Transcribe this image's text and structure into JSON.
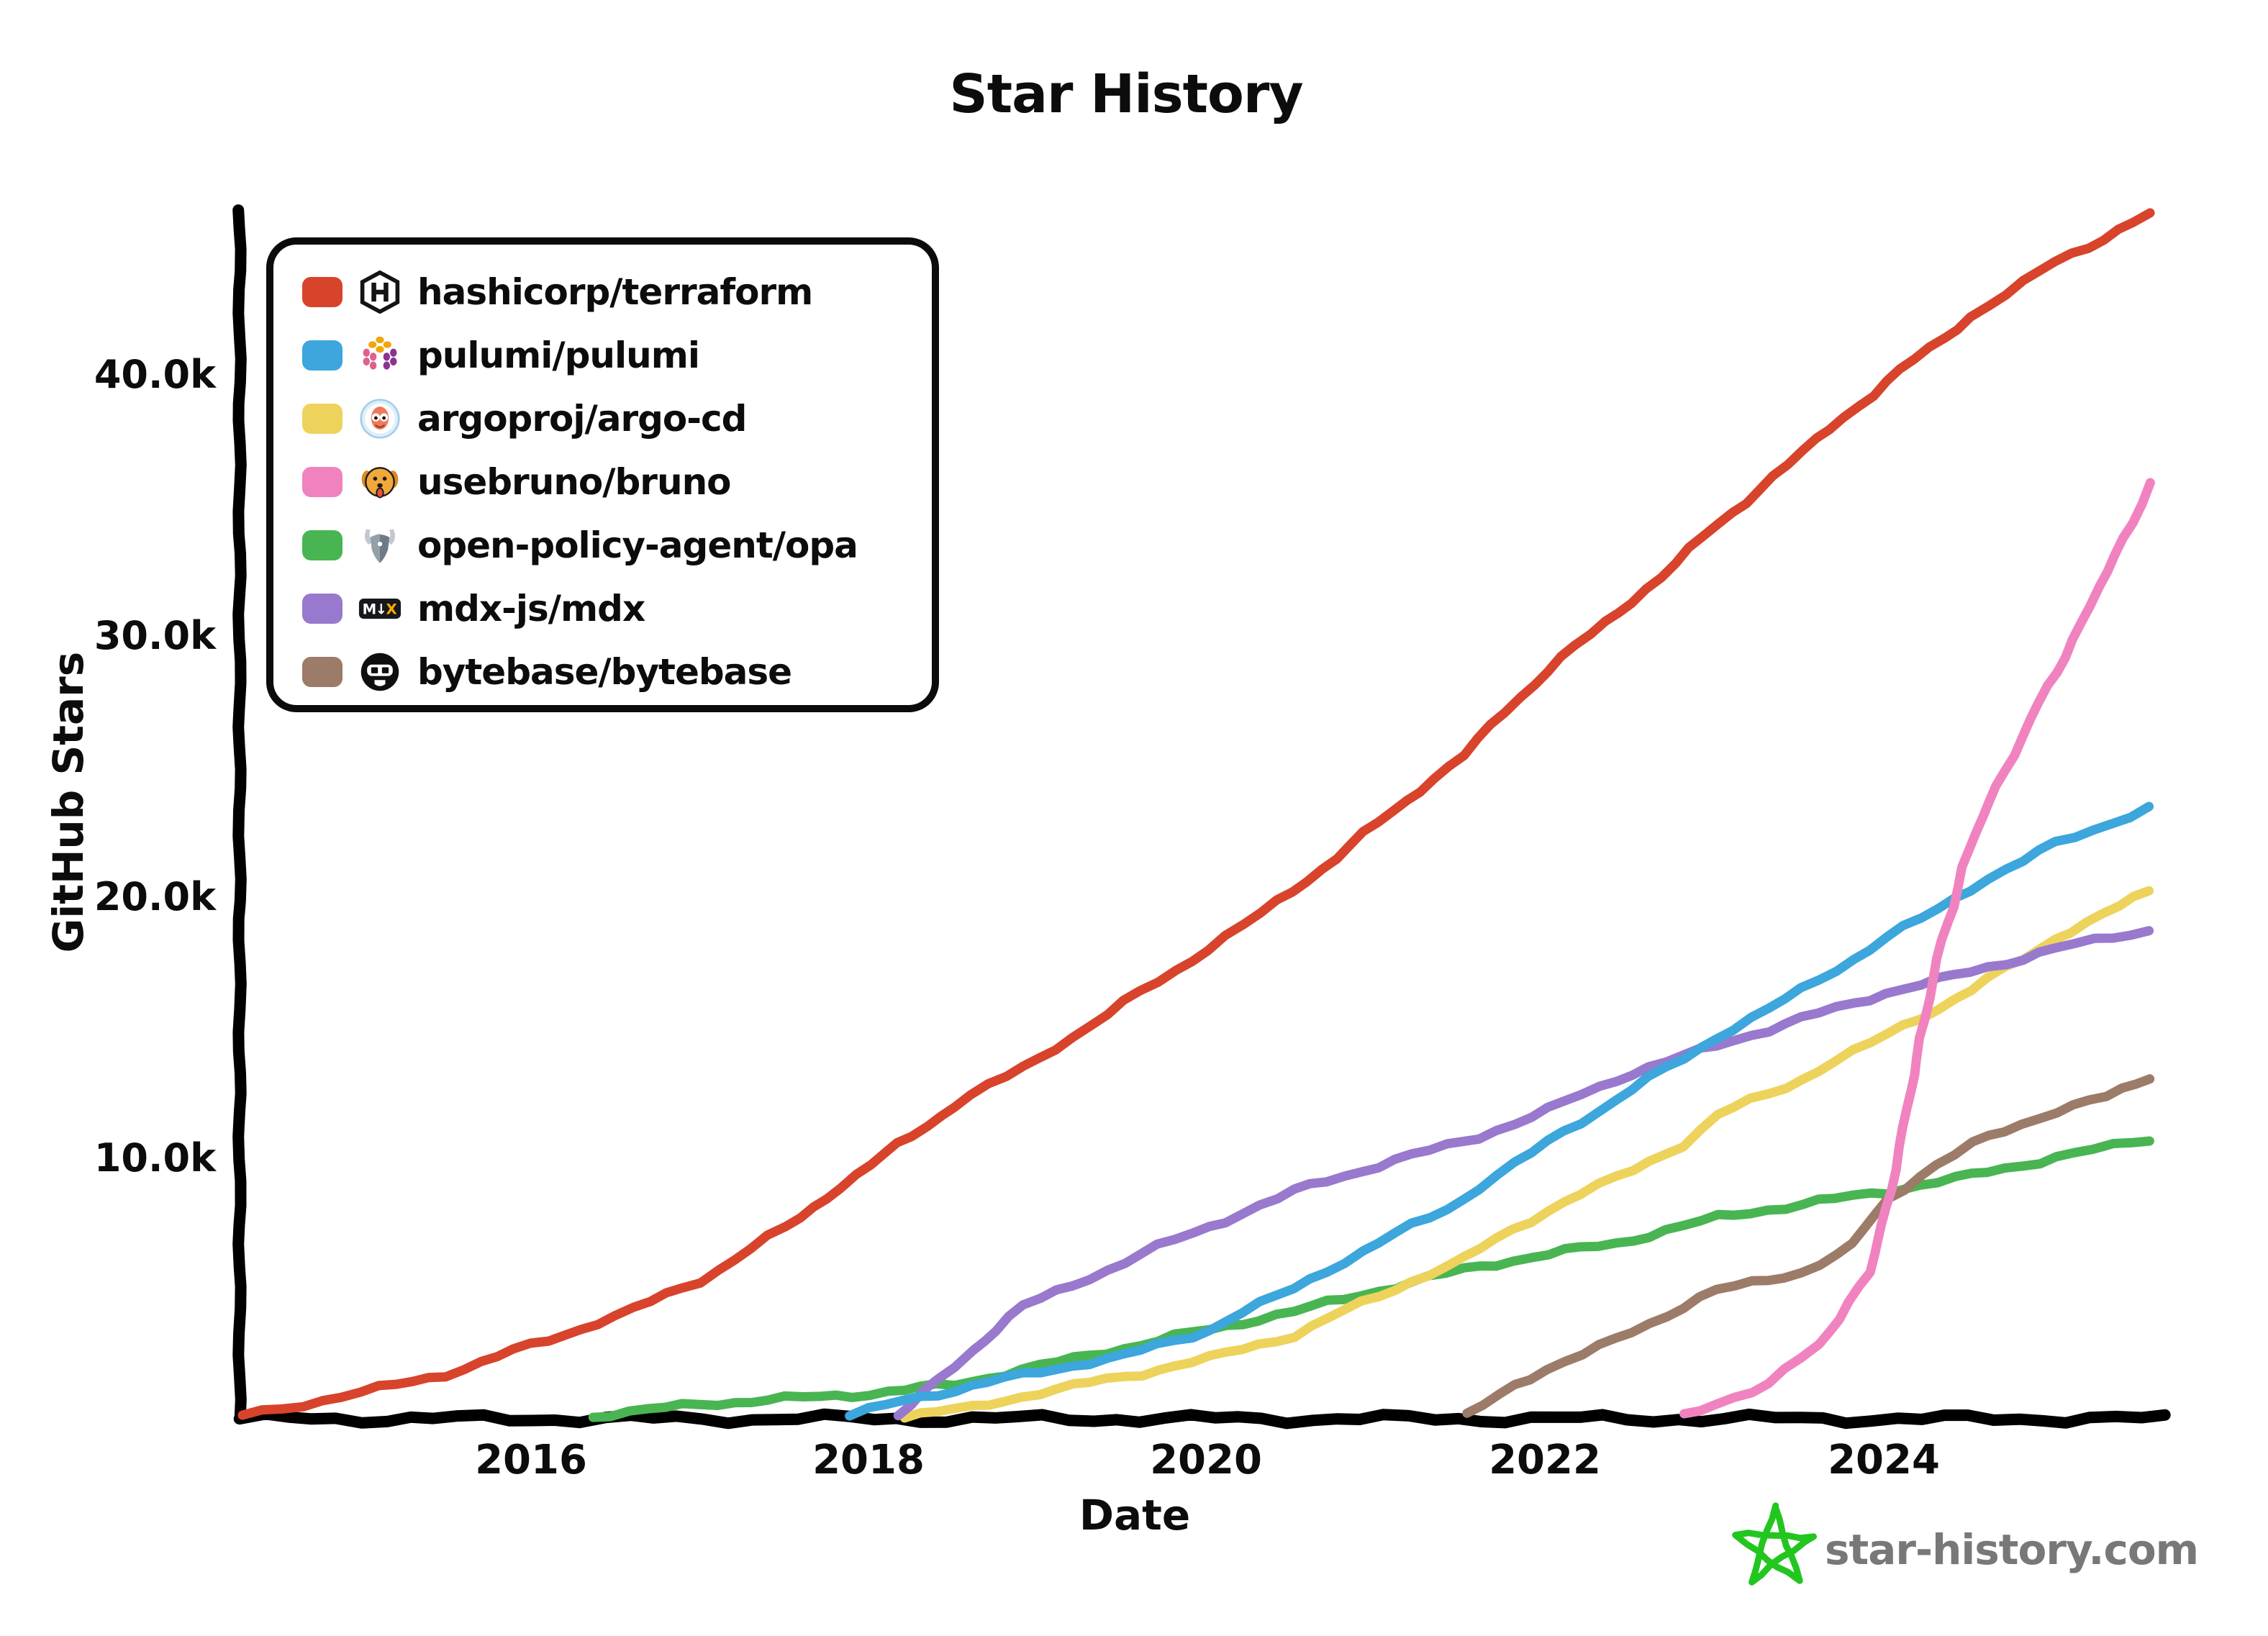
{
  "title": "Star History",
  "axes": {
    "y_label": "GitHub Stars",
    "x_label": "Date",
    "y_ticks": [
      {
        "label": "40.0k",
        "value": 40000
      },
      {
        "label": "30.0k",
        "value": 30000
      },
      {
        "label": "20.0k",
        "value": 20000
      },
      {
        "label": "10.0k",
        "value": 10000
      }
    ],
    "x_ticks": [
      {
        "label": "2016",
        "year": 2016
      },
      {
        "label": "2018",
        "year": 2018
      },
      {
        "label": "2020",
        "year": 2020
      },
      {
        "label": "2022",
        "year": 2022
      },
      {
        "label": "2024",
        "year": 2024
      }
    ]
  },
  "legend": {
    "items": [
      {
        "label": "hashicorp/terraform",
        "icon": "hashicorp-icon",
        "color": "#D8432C"
      },
      {
        "label": "pulumi/pulumi",
        "icon": "pulumi-icon",
        "color": "#3CA6DD"
      },
      {
        "label": "argoproj/argo-cd",
        "icon": "argo-icon",
        "color": "#EDD35C"
      },
      {
        "label": "usebruno/bruno",
        "icon": "bruno-icon",
        "color": "#F083BF"
      },
      {
        "label": "open-policy-agent/opa",
        "icon": "opa-icon",
        "color": "#49B552"
      },
      {
        "label": "mdx-js/mdx",
        "icon": "mdx-icon",
        "color": "#9879CE"
      },
      {
        "label": "bytebase/bytebase",
        "icon": "bytebase-icon",
        "color": "#9C7B68"
      }
    ]
  },
  "watermark": {
    "text": "star-history.com",
    "star_color": "#22C61F",
    "text_color": "#787878"
  },
  "chart_data": {
    "type": "line",
    "title": "Star History",
    "xlabel": "Date",
    "ylabel": "GitHub Stars",
    "x_range": [
      2014.28,
      2025.6
    ],
    "ylim": [
      0,
      48000
    ],
    "grid": false,
    "legend_position": "top-left",
    "x_tick_years": [
      2016,
      2018,
      2020,
      2022,
      2024
    ],
    "y_tick_values": [
      10000,
      20000,
      30000,
      40000
    ],
    "series": [
      {
        "name": "hashicorp/terraform",
        "color": "#D8432C",
        "z": 5,
        "points": [
          [
            2014.3,
            0
          ],
          [
            2015,
            900
          ],
          [
            2015.5,
            1600
          ],
          [
            2016,
            2700
          ],
          [
            2016.5,
            3800
          ],
          [
            2017,
            5200
          ],
          [
            2017.5,
            7200
          ],
          [
            2018,
            9600
          ],
          [
            2018.5,
            11900
          ],
          [
            2019,
            13700
          ],
          [
            2019.5,
            15800
          ],
          [
            2020,
            17900
          ],
          [
            2020.5,
            20100
          ],
          [
            2021,
            22700
          ],
          [
            2021.5,
            25300
          ],
          [
            2022,
            28600
          ],
          [
            2022.5,
            31200
          ],
          [
            2023,
            34100
          ],
          [
            2023.5,
            36900
          ],
          [
            2024,
            39600
          ],
          [
            2024.5,
            42100
          ],
          [
            2025,
            44200
          ],
          [
            2025.6,
            46000
          ]
        ]
      },
      {
        "name": "pulumi/pulumi",
        "color": "#3CA6DD",
        "z": 3,
        "points": [
          [
            2017.88,
            0
          ],
          [
            2018.2,
            600
          ],
          [
            2018.5,
            1000
          ],
          [
            2019,
            1700
          ],
          [
            2019.5,
            2300
          ],
          [
            2020,
            3300
          ],
          [
            2020.5,
            4900
          ],
          [
            2021,
            6600
          ],
          [
            2021.5,
            8300
          ],
          [
            2022,
            10500
          ],
          [
            2022.5,
            12500
          ],
          [
            2023,
            14500
          ],
          [
            2023.5,
            16300
          ],
          [
            2024,
            18300
          ],
          [
            2024.3,
            19400
          ],
          [
            2024.6,
            20600
          ],
          [
            2025,
            21900
          ],
          [
            2025.6,
            23300
          ]
        ]
      },
      {
        "name": "argoproj/argo-cd",
        "color": "#EDD35C",
        "z": 1,
        "points": [
          [
            2018.2,
            0
          ],
          [
            2018.6,
            300
          ],
          [
            2019,
            900
          ],
          [
            2019.5,
            1500
          ],
          [
            2020,
            2200
          ],
          [
            2020.5,
            3100
          ],
          [
            2021,
            4600
          ],
          [
            2021.5,
            6000
          ],
          [
            2022,
            7900
          ],
          [
            2022.4,
            9100
          ],
          [
            2022.8,
            10400
          ],
          [
            2023,
            11500
          ],
          [
            2023.5,
            12900
          ],
          [
            2024,
            14600
          ],
          [
            2024.5,
            16300
          ],
          [
            2025,
            18300
          ],
          [
            2025.6,
            20100
          ]
        ]
      },
      {
        "name": "usebruno/bruno",
        "color": "#F083BF",
        "z": 6,
        "points": [
          [
            2022.8,
            0
          ],
          [
            2023,
            500
          ],
          [
            2023.3,
            1200
          ],
          [
            2023.6,
            2700
          ],
          [
            2023.9,
            5500
          ],
          [
            2024,
            8000
          ],
          [
            2024.1,
            11000
          ],
          [
            2024.2,
            14500
          ],
          [
            2024.3,
            17500
          ],
          [
            2024.45,
            21000
          ],
          [
            2024.6,
            23500
          ],
          [
            2024.8,
            26000
          ],
          [
            2025,
            28500
          ],
          [
            2025.2,
            31000
          ],
          [
            2025.4,
            33600
          ],
          [
            2025.6,
            35700
          ]
        ]
      },
      {
        "name": "open-policy-agent/opa",
        "color": "#49B552",
        "z": 0,
        "points": [
          [
            2016.37,
            0
          ],
          [
            2017,
            450
          ],
          [
            2017.5,
            650
          ],
          [
            2018,
            850
          ],
          [
            2018.5,
            1200
          ],
          [
            2019,
            1900
          ],
          [
            2019.5,
            2600
          ],
          [
            2020,
            3300
          ],
          [
            2020.5,
            4000
          ],
          [
            2021,
            4800
          ],
          [
            2021.5,
            5600
          ],
          [
            2022,
            6200
          ],
          [
            2022.4,
            6600
          ],
          [
            2023,
            7600
          ],
          [
            2023.5,
            8100
          ],
          [
            2024,
            8600
          ],
          [
            2024.5,
            9200
          ],
          [
            2025,
            9900
          ],
          [
            2025.6,
            10600
          ]
        ]
      },
      {
        "name": "mdx-js/mdx",
        "color": "#9879CE",
        "z": 2,
        "points": [
          [
            2018.16,
            0
          ],
          [
            2018.4,
            1300
          ],
          [
            2018.6,
            2500
          ],
          [
            2018.9,
            4200
          ],
          [
            2019.2,
            5000
          ],
          [
            2019.6,
            6200
          ],
          [
            2020.1,
            7500
          ],
          [
            2020.5,
            8600
          ],
          [
            2021,
            9600
          ],
          [
            2021.6,
            10700
          ],
          [
            2022,
            11700
          ],
          [
            2022.4,
            12900
          ],
          [
            2023,
            14200
          ],
          [
            2023.5,
            15200
          ],
          [
            2024,
            16200
          ],
          [
            2024.5,
            17000
          ],
          [
            2025,
            17900
          ],
          [
            2025.6,
            18600
          ]
        ]
      },
      {
        "name": "bytebase/bytebase",
        "color": "#9C7B68",
        "z": 4,
        "points": [
          [
            2021.53,
            0
          ],
          [
            2021.8,
            1200
          ],
          [
            2022,
            1800
          ],
          [
            2022.4,
            2900
          ],
          [
            2022.8,
            4200
          ],
          [
            2023,
            4800
          ],
          [
            2023.5,
            5500
          ],
          [
            2023.8,
            6500
          ],
          [
            2024,
            8300
          ],
          [
            2024.2,
            9200
          ],
          [
            2024.5,
            10400
          ],
          [
            2025,
            11700
          ],
          [
            2025.3,
            12200
          ],
          [
            2025.6,
            13000
          ]
        ]
      }
    ]
  },
  "geometry_note": "y ticks at px: 40k=521, 30k=884, 20k=1247, 10k=1610; x ticks at px: 2016=738, 2018=1207, 2020=1676, 2022=2147, 2024=2618"
}
